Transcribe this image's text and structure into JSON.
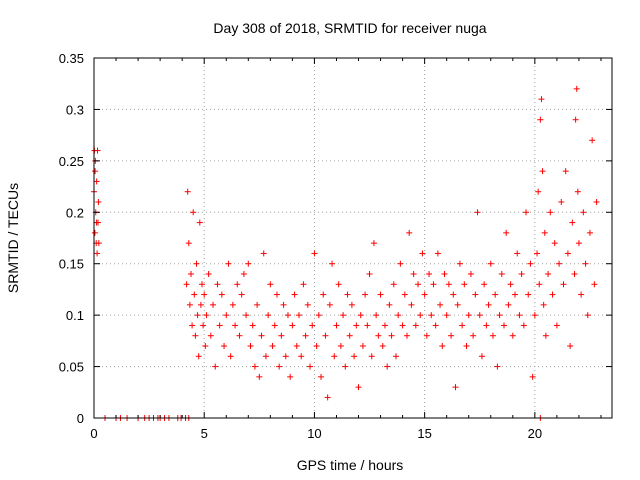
{
  "chart_data": {
    "type": "scatter",
    "title": "Day 308 of 2018, SRMTID for receiver nuga",
    "xlabel": "GPS time / hours",
    "ylabel": "SRMTID / TECUs",
    "xlim": [
      0,
      23.5
    ],
    "ylim": [
      0,
      0.35
    ],
    "xticks": [
      0,
      5,
      10,
      15,
      20
    ],
    "xtick_labels": [
      "0",
      "5",
      "10",
      "15",
      "20"
    ],
    "yticks": [
      0,
      0.05,
      0.1,
      0.15,
      0.2,
      0.25,
      0.3,
      0.35
    ],
    "ytick_labels": [
      "0",
      "0.05",
      "0.1",
      "0.15",
      "0.2",
      "0.25",
      "0.3",
      "0.35"
    ],
    "grid": true,
    "marker": "+",
    "color": "#ff0000",
    "series": [
      {
        "name": "nuga",
        "points": [
          [
            0.0,
            0.22
          ],
          [
            0.02,
            0.26
          ],
          [
            0.04,
            0.18
          ],
          [
            0.06,
            0.25
          ],
          [
            0.08,
            0.2
          ],
          [
            0.1,
            0.17
          ],
          [
            0.12,
            0.23
          ],
          [
            0.14,
            0.16
          ],
          [
            0.16,
            0.26
          ],
          [
            0.18,
            0.19
          ],
          [
            0.2,
            0.21
          ],
          [
            0.22,
            0.17
          ],
          [
            0.05,
            0.24
          ],
          [
            0.11,
            0.19
          ],
          [
            0.5,
            0
          ],
          [
            1.0,
            0
          ],
          [
            1.2,
            0
          ],
          [
            1.5,
            0
          ],
          [
            2.0,
            0
          ],
          [
            2.3,
            0
          ],
          [
            2.5,
            0
          ],
          [
            2.7,
            0
          ],
          [
            2.9,
            0
          ],
          [
            3.0,
            0
          ],
          [
            3.2,
            0
          ],
          [
            3.4,
            0
          ],
          [
            3.8,
            0
          ],
          [
            3.95,
            0
          ],
          [
            4.15,
            0
          ],
          [
            4.3,
            0
          ],
          [
            4.2,
            0.13
          ],
          [
            4.25,
            0.22
          ],
          [
            4.3,
            0.17
          ],
          [
            4.35,
            0.11
          ],
          [
            4.4,
            0.14
          ],
          [
            4.45,
            0.09
          ],
          [
            4.5,
            0.2
          ],
          [
            4.55,
            0.12
          ],
          [
            4.6,
            0.08
          ],
          [
            4.65,
            0.15
          ],
          [
            4.7,
            0.1
          ],
          [
            4.75,
            0.06
          ],
          [
            4.8,
            0.19
          ],
          [
            4.85,
            0.11
          ],
          [
            4.9,
            0.13
          ],
          [
            4.95,
            0.09
          ],
          [
            5.0,
            0.12
          ],
          [
            5.05,
            0.07
          ],
          [
            5.1,
            0.1
          ],
          [
            5.2,
            0.14
          ],
          [
            5.3,
            0.08
          ],
          [
            5.4,
            0.11
          ],
          [
            5.5,
            0.05
          ],
          [
            5.6,
            0.13
          ],
          [
            5.7,
            0.09
          ],
          [
            5.8,
            0.12
          ],
          [
            5.9,
            0.07
          ],
          [
            6.0,
            0.1
          ],
          [
            6.1,
            0.15
          ],
          [
            6.2,
            0.06
          ],
          [
            6.3,
            0.11
          ],
          [
            6.4,
            0.09
          ],
          [
            6.5,
            0.13
          ],
          [
            6.6,
            0.08
          ],
          [
            6.7,
            0.12
          ],
          [
            6.8,
            0.14
          ],
          [
            6.9,
            0.1
          ],
          [
            7.0,
            0.15
          ],
          [
            7.1,
            0.07
          ],
          [
            7.2,
            0.09
          ],
          [
            7.3,
            0.05
          ],
          [
            7.4,
            0.11
          ],
          [
            7.5,
            0.04
          ],
          [
            7.6,
            0.08
          ],
          [
            7.7,
            0.16
          ],
          [
            7.8,
            0.06
          ],
          [
            7.9,
            0.1
          ],
          [
            8.0,
            0.13
          ],
          [
            8.1,
            0.07
          ],
          [
            8.2,
            0.09
          ],
          [
            8.3,
            0.12
          ],
          [
            8.4,
            0.05
          ],
          [
            8.5,
            0.08
          ],
          [
            8.6,
            0.11
          ],
          [
            8.7,
            0.06
          ],
          [
            8.8,
            0.1
          ],
          [
            8.9,
            0.04
          ],
          [
            9.0,
            0.09
          ],
          [
            9.1,
            0.12
          ],
          [
            9.2,
            0.07
          ],
          [
            9.3,
            0.1
          ],
          [
            9.4,
            0.06
          ],
          [
            9.5,
            0.13
          ],
          [
            9.6,
            0.08
          ],
          [
            9.7,
            0.11
          ],
          [
            9.8,
            0.05
          ],
          [
            9.9,
            0.09
          ],
          [
            10.0,
            0.16
          ],
          [
            10.1,
            0.07
          ],
          [
            10.2,
            0.1
          ],
          [
            10.3,
            0.04
          ],
          [
            10.4,
            0.12
          ],
          [
            10.5,
            0.08
          ],
          [
            10.6,
            0.02
          ],
          [
            10.7,
            0.11
          ],
          [
            10.8,
            0.15
          ],
          [
            10.9,
            0.06
          ],
          [
            11.0,
            0.09
          ],
          [
            11.1,
            0.13
          ],
          [
            11.2,
            0.07
          ],
          [
            11.3,
            0.1
          ],
          [
            11.4,
            0.05
          ],
          [
            11.5,
            0.12
          ],
          [
            11.6,
            0.08
          ],
          [
            11.7,
            0.11
          ],
          [
            11.8,
            0.06
          ],
          [
            11.9,
            0.09
          ],
          [
            12.0,
            0.03
          ],
          [
            12.1,
            0.1
          ],
          [
            12.2,
            0.07
          ],
          [
            12.3,
            0.12
          ],
          [
            12.4,
            0.09
          ],
          [
            12.5,
            0.14
          ],
          [
            12.6,
            0.06
          ],
          [
            12.7,
            0.17
          ],
          [
            12.8,
            0.1
          ],
          [
            12.9,
            0.08
          ],
          [
            13.0,
            0.12
          ],
          [
            13.1,
            0.07
          ],
          [
            13.2,
            0.09
          ],
          [
            13.3,
            0.05
          ],
          [
            13.4,
            0.11
          ],
          [
            13.5,
            0.08
          ],
          [
            13.6,
            0.13
          ],
          [
            13.7,
            0.06
          ],
          [
            13.8,
            0.1
          ],
          [
            13.9,
            0.15
          ],
          [
            14.0,
            0.09
          ],
          [
            14.1,
            0.12
          ],
          [
            14.2,
            0.08
          ],
          [
            14.3,
            0.18
          ],
          [
            14.4,
            0.11
          ],
          [
            14.5,
            0.14
          ],
          [
            14.6,
            0.09
          ],
          [
            14.7,
            0.13
          ],
          [
            14.8,
            0.1
          ],
          [
            14.9,
            0.16
          ],
          [
            15.0,
            0.12
          ],
          [
            15.1,
            0.08
          ],
          [
            15.2,
            0.14
          ],
          [
            15.3,
            0.1
          ],
          [
            15.4,
            0.13
          ],
          [
            15.5,
            0.09
          ],
          [
            15.6,
            0.16
          ],
          [
            15.7,
            0.11
          ],
          [
            15.8,
            0.07
          ],
          [
            15.9,
            0.14
          ],
          [
            16.0,
            0.1
          ],
          [
            16.1,
            0.13
          ],
          [
            16.2,
            0.08
          ],
          [
            16.3,
            0.12
          ],
          [
            16.4,
            0.03
          ],
          [
            16.5,
            0.11
          ],
          [
            16.6,
            0.15
          ],
          [
            16.7,
            0.09
          ],
          [
            16.8,
            0.13
          ],
          [
            16.9,
            0.07
          ],
          [
            17.0,
            0.1
          ],
          [
            17.1,
            0.14
          ],
          [
            17.2,
            0.08
          ],
          [
            17.3,
            0.12
          ],
          [
            17.4,
            0.2
          ],
          [
            17.5,
            0.1
          ],
          [
            17.6,
            0.06
          ],
          [
            17.7,
            0.13
          ],
          [
            17.8,
            0.09
          ],
          [
            17.9,
            0.11
          ],
          [
            18.0,
            0.15
          ],
          [
            18.1,
            0.08
          ],
          [
            18.2,
            0.12
          ],
          [
            18.3,
            0.05
          ],
          [
            18.4,
            0.1
          ],
          [
            18.5,
            0.14
          ],
          [
            18.6,
            0.09
          ],
          [
            18.7,
            0.18
          ],
          [
            18.8,
            0.11
          ],
          [
            18.9,
            0.13
          ],
          [
            19.0,
            0.08
          ],
          [
            19.1,
            0.12
          ],
          [
            19.2,
            0.16
          ],
          [
            19.3,
            0.1
          ],
          [
            19.4,
            0.14
          ],
          [
            19.5,
            0.09
          ],
          [
            19.6,
            0.2
          ],
          [
            19.7,
            0.12
          ],
          [
            19.8,
            0.15
          ],
          [
            19.9,
            0.04
          ],
          [
            20.0,
            0.1
          ],
          [
            20.1,
            0.16
          ],
          [
            20.15,
            0.22
          ],
          [
            20.2,
            0.13
          ],
          [
            20.25,
            0.29
          ],
          [
            20.3,
            0.31
          ],
          [
            20.35,
            0.24
          ],
          [
            20.4,
            0.11
          ],
          [
            20.45,
            0.18
          ],
          [
            20.5,
            0.08
          ],
          [
            20.6,
            0.14
          ],
          [
            20.7,
            0.2
          ],
          [
            20.8,
            0.12
          ],
          [
            20.9,
            0.17
          ],
          [
            21.0,
            0.09
          ],
          [
            21.1,
            0.15
          ],
          [
            21.2,
            0.21
          ],
          [
            21.3,
            0.13
          ],
          [
            21.4,
            0.24
          ],
          [
            21.5,
            0.16
          ],
          [
            21.6,
            0.07
          ],
          [
            21.7,
            0.19
          ],
          [
            21.8,
            0.14
          ],
          [
            21.85,
            0.29
          ],
          [
            21.9,
            0.32
          ],
          [
            21.95,
            0.22
          ],
          [
            22.0,
            0.17
          ],
          [
            22.1,
            0.12
          ],
          [
            22.2,
            0.2
          ],
          [
            22.3,
            0.15
          ],
          [
            22.4,
            0.1
          ],
          [
            22.5,
            0.18
          ],
          [
            22.6,
            0.27
          ],
          [
            22.7,
            0.13
          ],
          [
            22.8,
            0.21
          ],
          [
            20.25,
            0
          ]
        ]
      }
    ]
  }
}
